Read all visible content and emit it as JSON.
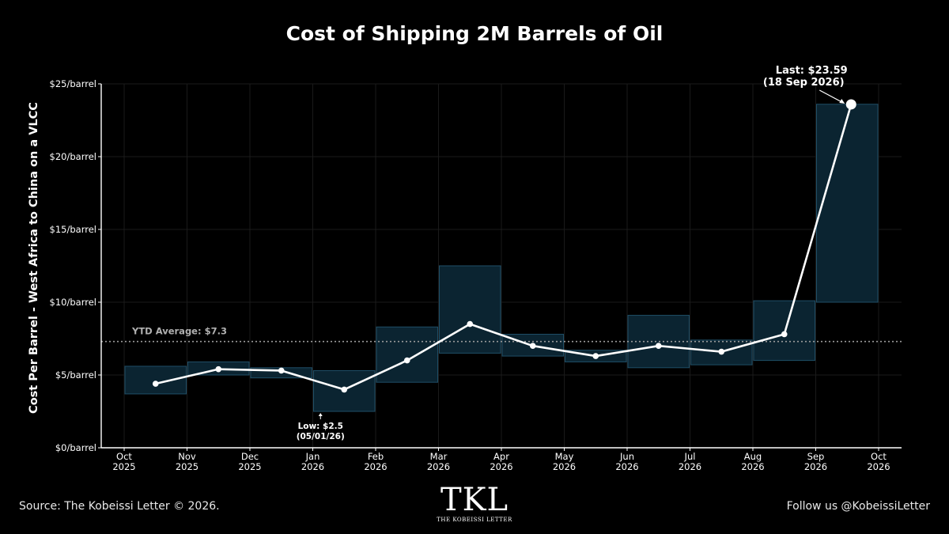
{
  "chart_data": {
    "type": "line",
    "title": "Cost of Shipping 2M Barrels of Oil",
    "ylabel": "Cost Per Barrel - West Africa to China on a VLCC",
    "xlabel": "",
    "ylim": [
      0,
      25
    ],
    "y_ticks": [
      {
        "value": 0,
        "label": "$0/barrel"
      },
      {
        "value": 5,
        "label": "$5/barrel"
      },
      {
        "value": 10,
        "label": "$10/barrel"
      },
      {
        "value": 15,
        "label": "$15/barrel"
      },
      {
        "value": 20,
        "label": "$20/barrel"
      },
      {
        "value": 25,
        "label": "$25/barrel"
      }
    ],
    "x_ticks": [
      {
        "month": "Oct",
        "year": "2025"
      },
      {
        "month": "Nov",
        "year": "2025"
      },
      {
        "month": "Dec",
        "year": "2025"
      },
      {
        "month": "Jan",
        "year": "2026"
      },
      {
        "month": "Feb",
        "year": "2026"
      },
      {
        "month": "Mar",
        "year": "2026"
      },
      {
        "month": "Apr",
        "year": "2026"
      },
      {
        "month": "May",
        "year": "2026"
      },
      {
        "month": "Jun",
        "year": "2026"
      },
      {
        "month": "Jul",
        "year": "2026"
      },
      {
        "month": "Aug",
        "year": "2026"
      },
      {
        "month": "Sep",
        "year": "2026"
      },
      {
        "month": "Oct",
        "year": "2026"
      }
    ],
    "monthly_ranges": [
      {
        "month": "Oct 2025",
        "low": 3.7,
        "high": 5.6
      },
      {
        "month": "Nov 2025",
        "low": 5.0,
        "high": 5.9
      },
      {
        "month": "Dec 2025",
        "low": 4.8,
        "high": 5.5
      },
      {
        "month": "Jan 2026",
        "low": 2.5,
        "high": 5.3
      },
      {
        "month": "Feb 2026",
        "low": 4.5,
        "high": 8.3
      },
      {
        "month": "Mar 2026",
        "low": 6.5,
        "high": 12.5
      },
      {
        "month": "Apr 2026",
        "low": 6.3,
        "high": 7.8
      },
      {
        "month": "May 2026",
        "low": 5.9,
        "high": 6.7
      },
      {
        "month": "Jun 2026",
        "low": 5.5,
        "high": 9.1
      },
      {
        "month": "Jul 2026",
        "low": 5.7,
        "high": 7.4
      },
      {
        "month": "Aug 2026",
        "low": 6.0,
        "high": 10.1
      },
      {
        "month": "Sep 2026",
        "low": 10.0,
        "high": 23.6
      }
    ],
    "series": [
      {
        "name": "",
        "points": [
          {
            "x": "Oct 2025",
            "y": 4.4
          },
          {
            "x": "Nov 2025",
            "y": 5.4
          },
          {
            "x": "Dec 2025",
            "y": 5.3
          },
          {
            "x": "Jan 2026",
            "y": 4.0
          },
          {
            "x": "Feb 2026",
            "y": 6.0
          },
          {
            "x": "Mar 2026",
            "y": 8.5
          },
          {
            "x": "Apr 2026",
            "y": 7.0
          },
          {
            "x": "May 2026",
            "y": 6.3
          },
          {
            "x": "Jun 2026",
            "y": 7.0
          },
          {
            "x": "Jul 2026",
            "y": 6.6
          },
          {
            "x": "Aug 2026",
            "y": 7.8
          },
          {
            "x": "Sep 2026",
            "y": 23.59
          }
        ]
      }
    ],
    "ytd_average": {
      "value": 7.3,
      "label": "YTD Average: $7.3"
    },
    "annotations": {
      "last_line1": "Last: $23.59",
      "last_line2": "(18 Sep 2026)",
      "low_line1": "Low: $2.5",
      "low_line2": "(05/01/26)"
    },
    "grid": true,
    "colors": {
      "background": "#000000",
      "line": "#ffffff",
      "range_fill": "#0b2431",
      "range_stroke": "#1f4e66",
      "grid": "#1a1a1a",
      "avg_line": "#9a9a9a"
    }
  },
  "footer": {
    "source": "Source: The Kobeissi Letter © 2026.",
    "follow": "Follow us @KobeissiLetter"
  },
  "logo": {
    "mark": "TKL",
    "name": "THE KOBEISSI LETTER"
  }
}
